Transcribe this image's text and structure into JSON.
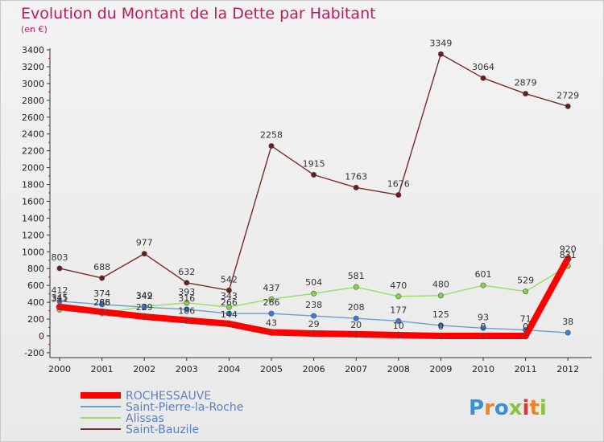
{
  "chart_data": {
    "type": "line",
    "title": "Evolution du Montant de la Dette par Habitant",
    "subtitle": "(en €)",
    "categories": [
      "2000",
      "2001",
      "2002",
      "2003",
      "2004",
      "2005",
      "2006",
      "2007",
      "2008",
      "2009",
      "2010",
      "2011",
      "2012"
    ],
    "ylim": [
      -200,
      3400
    ],
    "yticks": [
      -200,
      0,
      200,
      400,
      600,
      800,
      1000,
      1200,
      1400,
      1600,
      1800,
      2000,
      2200,
      2400,
      2600,
      2800,
      3000,
      3200,
      3400
    ],
    "grid": false,
    "legend_position": "bottom-left",
    "series": [
      {
        "name": "ROCHESSAUVE",
        "color": "#ff0000",
        "values": [
          345,
          286,
          229,
          186,
          144,
          43,
          29,
          20,
          10,
          0,
          0,
          0,
          920
        ]
      },
      {
        "name": "Saint-Pierre-la-Roche",
        "color": "#6a9fd4",
        "values": [
          412,
          374,
          342,
          316,
          266,
          266,
          238,
          208,
          177,
          125,
          93,
          71,
          38
        ]
      },
      {
        "name": "Alissas",
        "color": "#99dd66",
        "values": [
          311,
          268,
          349,
          393,
          343,
          437,
          504,
          581,
          470,
          480,
          601,
          529,
          831
        ]
      },
      {
        "name": "Saint-Bauzile",
        "color": "#7a2a2a",
        "values": [
          803,
          688,
          977,
          632,
          542,
          2258,
          1915,
          1763,
          1676,
          3349,
          3064,
          2879,
          2729
        ]
      }
    ],
    "data_labels": [
      {
        "series": 0,
        "labels": [
          "345",
          "286",
          "229",
          "186",
          "144",
          "43",
          "29",
          "20",
          "10",
          "0",
          "0",
          "0",
          "920"
        ]
      },
      {
        "series": 1,
        "labels": [
          "412",
          "374",
          "342",
          "316",
          "266",
          "266",
          "238",
          "208",
          "177",
          "125",
          "93",
          "71",
          "38"
        ]
      },
      {
        "series": 2,
        "labels": [
          "311",
          "268",
          "349",
          "393",
          "343",
          "437",
          "504",
          "581",
          "470",
          "480",
          "601",
          "529",
          "831"
        ]
      },
      {
        "series": 3,
        "labels": [
          "803",
          "688",
          "977",
          "632",
          "542",
          "2258",
          "1915",
          "1763",
          "1676",
          "3349",
          "3064",
          "2879",
          "2729"
        ]
      }
    ]
  },
  "logo": {
    "text": "Proxiti"
  }
}
